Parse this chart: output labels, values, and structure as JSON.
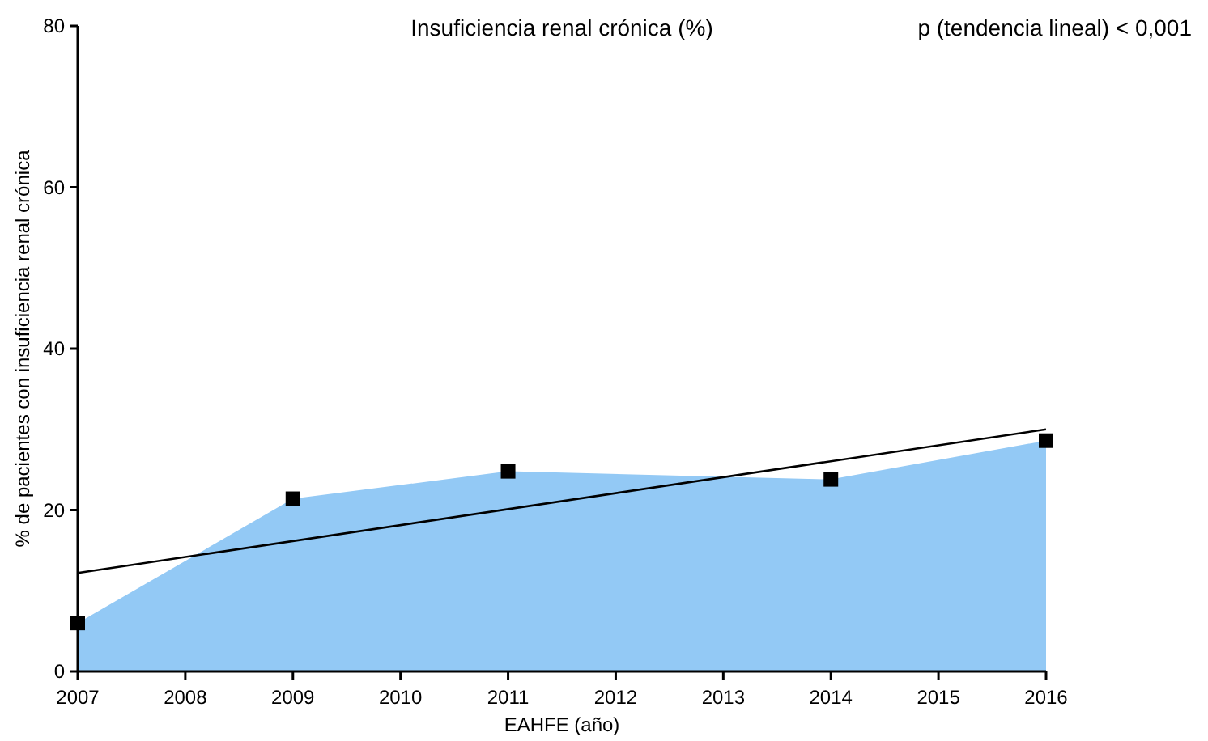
{
  "chart_data": {
    "type": "area",
    "title": "Insuficiencia renal crónica (%)",
    "xlabel": "EAHFE (año)",
    "ylabel": "% de pacientes con insuficiencia renal crónica",
    "annotations": [
      "p (tendencia lineal) < 0,001"
    ],
    "xlim": [
      2007,
      2016
    ],
    "xticks": [
      2007,
      2008,
      2009,
      2010,
      2011,
      2012,
      2013,
      2014,
      2015,
      2016
    ],
    "ylim": [
      0,
      80
    ],
    "yticks": [
      0,
      20,
      40,
      60,
      80
    ],
    "grid": false,
    "series": [
      {
        "color": "#93c9f5",
        "x": [
          2007,
          2009,
          2011,
          2014,
          2016
        ],
        "values": [
          6.0,
          21.4,
          24.8,
          23.8,
          28.6
        ]
      },
      {
        "type": "scatter",
        "color": "#000000",
        "marker": "square",
        "x": [
          2007,
          2009,
          2011,
          2014,
          2016
        ],
        "values": [
          6.0,
          21.4,
          24.8,
          23.8,
          28.6
        ]
      },
      {
        "type": "line",
        "color": "#000000",
        "line_style": "solid",
        "x": [
          2007,
          2016
        ],
        "values": [
          12.2,
          30.0
        ]
      }
    ]
  }
}
